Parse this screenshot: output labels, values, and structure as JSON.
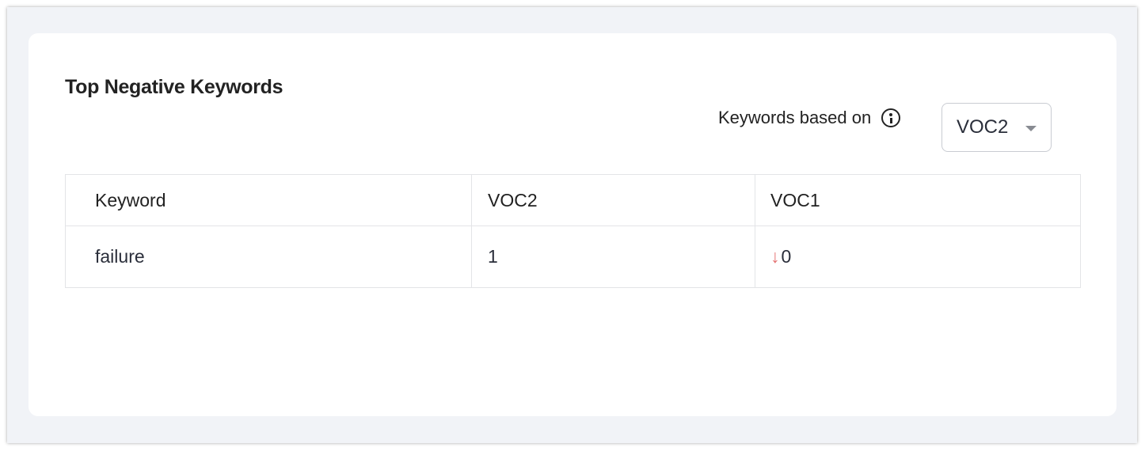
{
  "widget": {
    "title": "Top Negative Keywords",
    "based_on_label": "Keywords based on",
    "selected_option": "VOC2"
  },
  "table": {
    "headers": [
      "Keyword",
      "VOC2",
      "VOC1"
    ],
    "rows": [
      {
        "keyword": "failure",
        "voc2": "1",
        "voc1": "0",
        "trend": "down"
      }
    ]
  },
  "colors": {
    "trend_down": "#e57373",
    "background": "#f1f3f7"
  }
}
